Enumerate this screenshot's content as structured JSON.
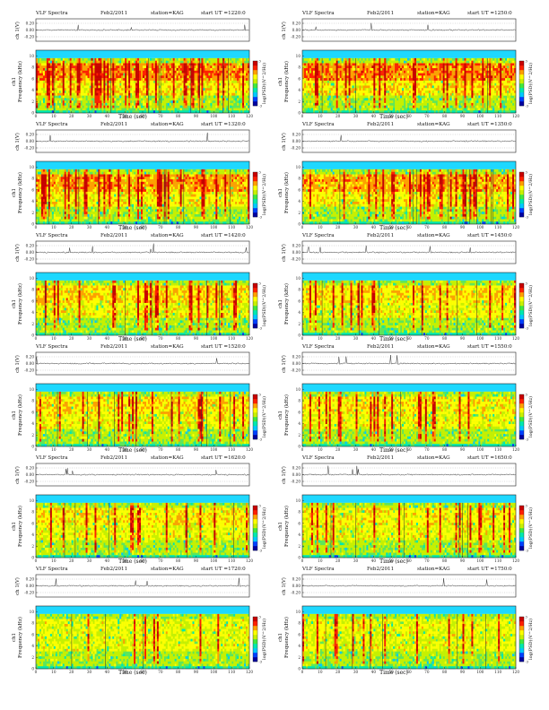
{
  "chart_data": {
    "type": "heatmap",
    "color_scale": [
      "#0000a0",
      "#0040ff",
      "#00c8ff",
      "#00e8b0",
      "#40e840",
      "#c8f000",
      "#ffff00",
      "#ffa000",
      "#ff2000",
      "#c80000"
    ],
    "waveform_yticks": [
      "0.20",
      "0.00",
      "-0.20"
    ],
    "freq_yticks": [
      "0",
      "2",
      "4",
      "6",
      "8",
      "10"
    ],
    "time_xticks": [
      "0",
      "10",
      "20",
      "30",
      "40",
      "50",
      "60",
      "70",
      "80",
      "90",
      "100",
      "110",
      "120"
    ],
    "colorbar_ticks": [
      "3",
      "",
      "",
      "-3"
    ],
    "panels": [
      {
        "title": "VLF Spectra",
        "date": "Feb2/2011",
        "station": "station=KAG",
        "start": "start  UT  =1220:0",
        "wave_ylabel": "ch 1(V)",
        "freq_ylabel": "Frequency  (kHz)",
        "ch_label": "ch1",
        "xlabel": "Time  (sec)",
        "cbar_label": "log(PSD)(V^2/Hz)",
        "band_top_khz": 9.6,
        "activity": 0.85,
        "seed": 11
      },
      {
        "title": "VLF Spectra",
        "date": "Feb2/2011",
        "station": "station=KAG",
        "start": "start  UT  =1250:0",
        "wave_ylabel": "ch 1(V)",
        "freq_ylabel": "Frequency  (kHz)",
        "ch_label": "ch1",
        "xlabel": "Time  (sec)",
        "cbar_label": "log(PSD)(V^2/Hz)",
        "band_top_khz": 9.6,
        "activity": 0.85,
        "seed": 23
      },
      {
        "title": "VLF Spectra",
        "date": "Feb2/2011",
        "station": "station=KAG",
        "start": "start  UT  =1320:0",
        "wave_ylabel": "ch 1(V)",
        "freq_ylabel": "Frequency  (kHz)",
        "ch_label": "ch1",
        "xlabel": "Time  (sec)",
        "cbar_label": "log(PSD)(V^2/Hz)",
        "band_top_khz": 9.6,
        "activity": 0.75,
        "seed": 37
      },
      {
        "title": "VLF Spectra",
        "date": "Feb2/2011",
        "station": "station=KAG",
        "start": "start  UT  =1350:0",
        "wave_ylabel": "ch 1(V)",
        "freq_ylabel": "Frequency  (kHz)",
        "ch_label": "ch1",
        "xlabel": "Time  (sec)",
        "cbar_label": "log(PSD)(V^2/Hz)",
        "band_top_khz": 9.6,
        "activity": 0.7,
        "seed": 41
      },
      {
        "title": "VLF Spectra",
        "date": "Feb2/2011",
        "station": "station=KAG",
        "start": "start  UT  =1420:0",
        "wave_ylabel": "ch 1(V)",
        "freq_ylabel": "Frequency  (kHz)",
        "ch_label": "ch1",
        "xlabel": "Time  (sec)",
        "cbar_label": "log(PSD)(V^2/Hz)",
        "band_top_khz": 9.6,
        "activity": 0.55,
        "seed": 53
      },
      {
        "title": "VLF Spectra",
        "date": "Feb2/2011",
        "station": "station=KAG",
        "start": "start  UT  =1450:0",
        "wave_ylabel": "ch 1(V)",
        "freq_ylabel": "Frequency  (kHz)",
        "ch_label": "ch1",
        "xlabel": "Time  (sec)",
        "cbar_label": "log(PSD)(V^2/Hz)",
        "band_top_khz": 9.6,
        "activity": 0.5,
        "seed": 67
      },
      {
        "title": "VLF Spectra",
        "date": "Feb2/2011",
        "station": "station=KAG",
        "start": "start  UT  =1520:0",
        "wave_ylabel": "ch 1(V)",
        "freq_ylabel": "Frequency  (kHz)",
        "ch_label": "ch1",
        "xlabel": "Time  (sec)",
        "cbar_label": "log(PSD)(V^2/Hz)",
        "band_top_khz": 9.6,
        "activity": 0.5,
        "seed": 71
      },
      {
        "title": "VLF Spectra",
        "date": "Feb2/2011",
        "station": "station=KAG",
        "start": "start  UT  =1550:0",
        "wave_ylabel": "ch 1(V)",
        "freq_ylabel": "Frequency  (kHz)",
        "ch_label": "ch1",
        "xlabel": "Time  (sec)",
        "cbar_label": "log(PSD)(V^2/Hz)",
        "band_top_khz": 9.6,
        "activity": 0.45,
        "seed": 83
      },
      {
        "title": "VLF Spectra",
        "date": "Feb2/2011",
        "station": "station=KAG",
        "start": "start  UT  =1620:0",
        "wave_ylabel": "ch 1(V)",
        "freq_ylabel": "Frequency  (kHz)",
        "ch_label": "ch1",
        "xlabel": "Time  (sec)",
        "cbar_label": "log(PSD)(V^2/Hz)",
        "band_top_khz": 9.6,
        "activity": 0.45,
        "seed": 97
      },
      {
        "title": "VLF Spectra",
        "date": "Feb2/2011",
        "station": "station=KAG",
        "start": "start  UT  =1650:0",
        "wave_ylabel": "ch 1(V)",
        "freq_ylabel": "Frequency  (kHz)",
        "ch_label": "ch1",
        "xlabel": "Time  (sec)",
        "cbar_label": "log(PSD)(V^2/Hz)",
        "band_top_khz": 9.6,
        "activity": 0.4,
        "seed": 101
      },
      {
        "title": "VLF Spectra",
        "date": "Feb2/2011",
        "station": "station=KAG",
        "start": "start  UT  =1720:0",
        "wave_ylabel": "ch 1(V)",
        "freq_ylabel": "Frequency  (kHz)",
        "ch_label": "ch1",
        "xlabel": "Time  (sec)",
        "cbar_label": "log(PSD)(V^2/Hz)",
        "band_top_khz": 9.6,
        "activity": 0.3,
        "seed": 113
      },
      {
        "title": "VLF Spectra",
        "date": "Feb2/2011",
        "station": "station=KAG",
        "start": "start  UT  =1750:0",
        "wave_ylabel": "ch 1(V)",
        "freq_ylabel": "Frequency  (kHz)",
        "ch_label": "ch1",
        "xlabel": "Time  (sec)",
        "cbar_label": "log(PSD)(V^2/Hz)",
        "band_top_khz": 9.6,
        "activity": 0.3,
        "seed": 127
      }
    ]
  }
}
